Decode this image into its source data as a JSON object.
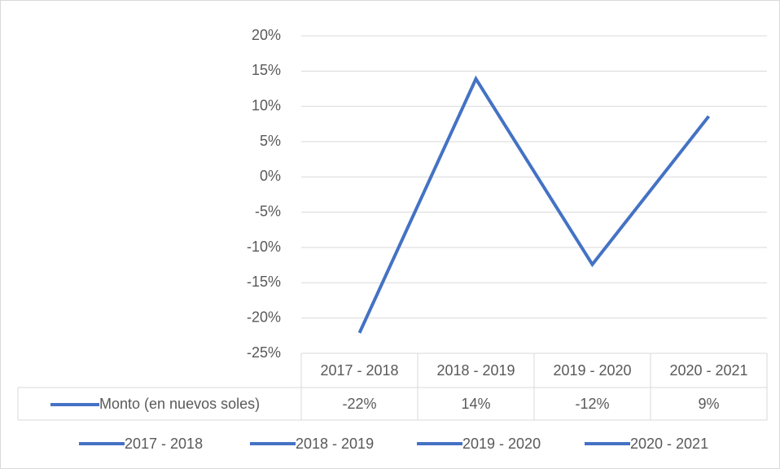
{
  "chart_data": {
    "type": "line",
    "categories": [
      "2017 - 2018",
      "2018 - 2019",
      "2019 - 2020",
      "2020 - 2021"
    ],
    "series": [
      {
        "name": "Monto (en nuevos soles)",
        "color": "#4472c4",
        "values": [
          -22.1,
          13.9,
          -12.4,
          8.6
        ],
        "value_labels": [
          "-22%",
          "14%",
          "-12%",
          "9%"
        ]
      }
    ],
    "ylim": [
      -25,
      20
    ],
    "yticks": [
      {
        "value": -25,
        "label": "-25%"
      },
      {
        "value": -20,
        "label": "-20%"
      },
      {
        "value": -15,
        "label": "-15%"
      },
      {
        "value": -10,
        "label": "-10%"
      },
      {
        "value": -5,
        "label": "-5%"
      },
      {
        "value": 0,
        "label": "0%"
      },
      {
        "value": 5,
        "label": "5%"
      },
      {
        "value": 10,
        "label": "10%"
      },
      {
        "value": 15,
        "label": "15%"
      },
      {
        "value": 20,
        "label": "20%"
      }
    ],
    "grid": true,
    "legend": "bottom"
  }
}
